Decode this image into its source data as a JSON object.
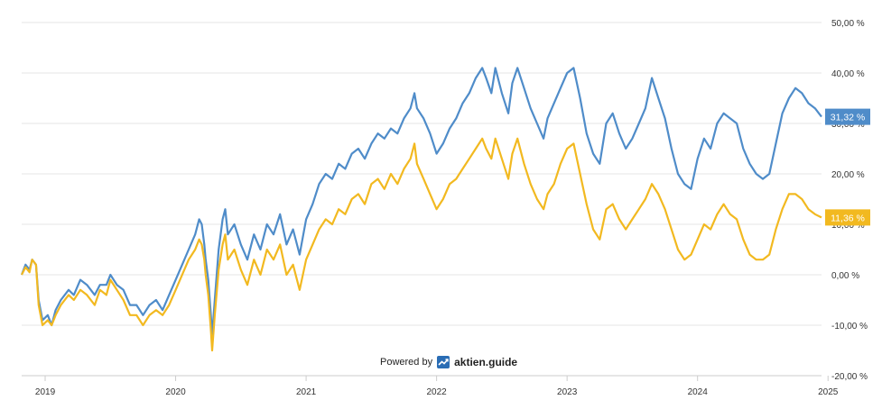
{
  "chart_data": {
    "type": "line",
    "title": "",
    "xlabel": "",
    "ylabel": "",
    "x_ticks": [
      "2019",
      "2020",
      "2021",
      "2022",
      "2023",
      "2024",
      "2025"
    ],
    "x_tick_years": [
      2019,
      2020,
      2021,
      2022,
      2023,
      2024,
      2025
    ],
    "xlim": [
      2018.82,
      2024.95
    ],
    "y_ticks": [
      "50,00 %",
      "40,00 %",
      "30,00 %",
      "20,00 %",
      "10,00 %",
      "0,00 %",
      "-10,00 %",
      "-20,00 %"
    ],
    "y_tick_values": [
      50,
      40,
      30,
      20,
      10,
      0,
      -10,
      -20
    ],
    "ylim": [
      -20,
      50
    ],
    "grid": true,
    "series": [
      {
        "color": "#4f8cc9",
        "end_label": "31,32 %",
        "points": [
          [
            2018.82,
            0
          ],
          [
            2018.85,
            2
          ],
          [
            2018.88,
            1
          ],
          [
            2018.9,
            3
          ],
          [
            2018.93,
            2
          ],
          [
            2018.95,
            -5
          ],
          [
            2018.98,
            -9
          ],
          [
            2019.02,
            -8
          ],
          [
            2019.05,
            -10
          ],
          [
            2019.08,
            -7
          ],
          [
            2019.12,
            -5
          ],
          [
            2019.18,
            -3
          ],
          [
            2019.22,
            -4
          ],
          [
            2019.27,
            -1
          ],
          [
            2019.32,
            -2
          ],
          [
            2019.38,
            -4
          ],
          [
            2019.42,
            -2
          ],
          [
            2019.47,
            -2
          ],
          [
            2019.5,
            0
          ],
          [
            2019.55,
            -2
          ],
          [
            2019.6,
            -3
          ],
          [
            2019.65,
            -6
          ],
          [
            2019.7,
            -6
          ],
          [
            2019.75,
            -8
          ],
          [
            2019.8,
            -6
          ],
          [
            2019.85,
            -5
          ],
          [
            2019.9,
            -7
          ],
          [
            2019.95,
            -4
          ],
          [
            2020.0,
            -1
          ],
          [
            2020.05,
            2
          ],
          [
            2020.1,
            5
          ],
          [
            2020.15,
            8
          ],
          [
            2020.18,
            11
          ],
          [
            2020.2,
            10
          ],
          [
            2020.22,
            6
          ],
          [
            2020.23,
            3
          ],
          [
            2020.25,
            -1
          ],
          [
            2020.27,
            -8
          ],
          [
            2020.28,
            -12
          ],
          [
            2020.3,
            -5
          ],
          [
            2020.33,
            5
          ],
          [
            2020.36,
            11
          ],
          [
            2020.38,
            13
          ],
          [
            2020.4,
            8
          ],
          [
            2020.45,
            10
          ],
          [
            2020.5,
            6
          ],
          [
            2020.55,
            3
          ],
          [
            2020.6,
            8
          ],
          [
            2020.65,
            5
          ],
          [
            2020.7,
            10
          ],
          [
            2020.75,
            8
          ],
          [
            2020.8,
            12
          ],
          [
            2020.85,
            6
          ],
          [
            2020.9,
            9
          ],
          [
            2020.95,
            4
          ],
          [
            2021.0,
            11
          ],
          [
            2021.05,
            14
          ],
          [
            2021.1,
            18
          ],
          [
            2021.15,
            20
          ],
          [
            2021.2,
            19
          ],
          [
            2021.25,
            22
          ],
          [
            2021.3,
            21
          ],
          [
            2021.35,
            24
          ],
          [
            2021.4,
            25
          ],
          [
            2021.45,
            23
          ],
          [
            2021.5,
            26
          ],
          [
            2021.55,
            28
          ],
          [
            2021.6,
            27
          ],
          [
            2021.65,
            29
          ],
          [
            2021.7,
            28
          ],
          [
            2021.75,
            31
          ],
          [
            2021.8,
            33
          ],
          [
            2021.83,
            36
          ],
          [
            2021.85,
            33
          ],
          [
            2021.9,
            31
          ],
          [
            2021.95,
            28
          ],
          [
            2022.0,
            24
          ],
          [
            2022.05,
            26
          ],
          [
            2022.1,
            29
          ],
          [
            2022.15,
            31
          ],
          [
            2022.2,
            34
          ],
          [
            2022.25,
            36
          ],
          [
            2022.3,
            39
          ],
          [
            2022.35,
            41
          ],
          [
            2022.38,
            39
          ],
          [
            2022.42,
            36
          ],
          [
            2022.45,
            41
          ],
          [
            2022.5,
            36
          ],
          [
            2022.55,
            32
          ],
          [
            2022.58,
            38
          ],
          [
            2022.62,
            41
          ],
          [
            2022.67,
            37
          ],
          [
            2022.72,
            33
          ],
          [
            2022.77,
            30
          ],
          [
            2022.82,
            27
          ],
          [
            2022.85,
            31
          ],
          [
            2022.9,
            34
          ],
          [
            2022.95,
            37
          ],
          [
            2023.0,
            40
          ],
          [
            2023.05,
            41
          ],
          [
            2023.1,
            35
          ],
          [
            2023.15,
            28
          ],
          [
            2023.2,
            24
          ],
          [
            2023.25,
            22
          ],
          [
            2023.3,
            30
          ],
          [
            2023.35,
            32
          ],
          [
            2023.4,
            28
          ],
          [
            2023.45,
            25
          ],
          [
            2023.5,
            27
          ],
          [
            2023.55,
            30
          ],
          [
            2023.6,
            33
          ],
          [
            2023.65,
            39
          ],
          [
            2023.7,
            35
          ],
          [
            2023.75,
            31
          ],
          [
            2023.8,
            25
          ],
          [
            2023.85,
            20
          ],
          [
            2023.9,
            18
          ],
          [
            2023.95,
            17
          ],
          [
            2024.0,
            23
          ],
          [
            2024.05,
            27
          ],
          [
            2024.1,
            25
          ],
          [
            2024.15,
            30
          ],
          [
            2024.2,
            32
          ],
          [
            2024.25,
            31
          ],
          [
            2024.3,
            30
          ],
          [
            2024.35,
            25
          ],
          [
            2024.4,
            22
          ],
          [
            2024.45,
            20
          ],
          [
            2024.5,
            19
          ],
          [
            2024.55,
            20
          ],
          [
            2024.6,
            26
          ],
          [
            2024.65,
            32
          ],
          [
            2024.7,
            35
          ],
          [
            2024.75,
            37
          ],
          [
            2024.8,
            36
          ],
          [
            2024.85,
            34
          ],
          [
            2024.9,
            33
          ],
          [
            2024.95,
            31.32
          ]
        ]
      },
      {
        "color": "#f2b920",
        "end_label": "11,36 %",
        "points": [
          [
            2018.82,
            0
          ],
          [
            2018.85,
            1.5
          ],
          [
            2018.88,
            0.5
          ],
          [
            2018.9,
            3
          ],
          [
            2018.93,
            2
          ],
          [
            2018.95,
            -6
          ],
          [
            2018.98,
            -10
          ],
          [
            2019.02,
            -9
          ],
          [
            2019.05,
            -10
          ],
          [
            2019.08,
            -8
          ],
          [
            2019.12,
            -6
          ],
          [
            2019.18,
            -4
          ],
          [
            2019.22,
            -5
          ],
          [
            2019.27,
            -3
          ],
          [
            2019.32,
            -4
          ],
          [
            2019.38,
            -6
          ],
          [
            2019.42,
            -3
          ],
          [
            2019.47,
            -4
          ],
          [
            2019.5,
            -1
          ],
          [
            2019.55,
            -3
          ],
          [
            2019.6,
            -5
          ],
          [
            2019.65,
            -8
          ],
          [
            2019.7,
            -8
          ],
          [
            2019.75,
            -10
          ],
          [
            2019.8,
            -8
          ],
          [
            2019.85,
            -7
          ],
          [
            2019.9,
            -8
          ],
          [
            2019.95,
            -6
          ],
          [
            2020.0,
            -3
          ],
          [
            2020.05,
            0
          ],
          [
            2020.1,
            3
          ],
          [
            2020.15,
            5
          ],
          [
            2020.18,
            7
          ],
          [
            2020.2,
            6
          ],
          [
            2020.22,
            3
          ],
          [
            2020.23,
            0
          ],
          [
            2020.25,
            -4
          ],
          [
            2020.27,
            -11
          ],
          [
            2020.28,
            -15
          ],
          [
            2020.3,
            -8
          ],
          [
            2020.33,
            1
          ],
          [
            2020.36,
            6
          ],
          [
            2020.38,
            8
          ],
          [
            2020.4,
            3
          ],
          [
            2020.45,
            5
          ],
          [
            2020.5,
            1
          ],
          [
            2020.55,
            -2
          ],
          [
            2020.6,
            3
          ],
          [
            2020.65,
            0
          ],
          [
            2020.7,
            5
          ],
          [
            2020.75,
            3
          ],
          [
            2020.8,
            6
          ],
          [
            2020.85,
            0
          ],
          [
            2020.9,
            2
          ],
          [
            2020.95,
            -3
          ],
          [
            2021.0,
            3
          ],
          [
            2021.05,
            6
          ],
          [
            2021.1,
            9
          ],
          [
            2021.15,
            11
          ],
          [
            2021.2,
            10
          ],
          [
            2021.25,
            13
          ],
          [
            2021.3,
            12
          ],
          [
            2021.35,
            15
          ],
          [
            2021.4,
            16
          ],
          [
            2021.45,
            14
          ],
          [
            2021.5,
            18
          ],
          [
            2021.55,
            19
          ],
          [
            2021.6,
            17
          ],
          [
            2021.65,
            20
          ],
          [
            2021.7,
            18
          ],
          [
            2021.75,
            21
          ],
          [
            2021.8,
            23
          ],
          [
            2021.83,
            26
          ],
          [
            2021.85,
            22
          ],
          [
            2021.9,
            19
          ],
          [
            2021.95,
            16
          ],
          [
            2022.0,
            13
          ],
          [
            2022.05,
            15
          ],
          [
            2022.1,
            18
          ],
          [
            2022.15,
            19
          ],
          [
            2022.2,
            21
          ],
          [
            2022.25,
            23
          ],
          [
            2022.3,
            25
          ],
          [
            2022.35,
            27
          ],
          [
            2022.38,
            25
          ],
          [
            2022.42,
            23
          ],
          [
            2022.45,
            27
          ],
          [
            2022.5,
            23
          ],
          [
            2022.55,
            19
          ],
          [
            2022.58,
            24
          ],
          [
            2022.62,
            27
          ],
          [
            2022.67,
            22
          ],
          [
            2022.72,
            18
          ],
          [
            2022.77,
            15
          ],
          [
            2022.82,
            13
          ],
          [
            2022.85,
            16
          ],
          [
            2022.9,
            18
          ],
          [
            2022.95,
            22
          ],
          [
            2023.0,
            25
          ],
          [
            2023.05,
            26
          ],
          [
            2023.1,
            20
          ],
          [
            2023.15,
            14
          ],
          [
            2023.2,
            9
          ],
          [
            2023.25,
            7
          ],
          [
            2023.3,
            13
          ],
          [
            2023.35,
            14
          ],
          [
            2023.4,
            11
          ],
          [
            2023.45,
            9
          ],
          [
            2023.5,
            11
          ],
          [
            2023.55,
            13
          ],
          [
            2023.6,
            15
          ],
          [
            2023.65,
            18
          ],
          [
            2023.7,
            16
          ],
          [
            2023.75,
            13
          ],
          [
            2023.8,
            9
          ],
          [
            2023.85,
            5
          ],
          [
            2023.9,
            3
          ],
          [
            2023.95,
            4
          ],
          [
            2024.0,
            7
          ],
          [
            2024.05,
            10
          ],
          [
            2024.1,
            9
          ],
          [
            2024.15,
            12
          ],
          [
            2024.2,
            14
          ],
          [
            2024.25,
            12
          ],
          [
            2024.3,
            11
          ],
          [
            2024.35,
            7
          ],
          [
            2024.4,
            4
          ],
          [
            2024.45,
            3
          ],
          [
            2024.5,
            3
          ],
          [
            2024.55,
            4
          ],
          [
            2024.6,
            9
          ],
          [
            2024.65,
            13
          ],
          [
            2024.7,
            16
          ],
          [
            2024.75,
            16
          ],
          [
            2024.8,
            15
          ],
          [
            2024.85,
            13
          ],
          [
            2024.9,
            12
          ],
          [
            2024.95,
            11.36
          ]
        ]
      }
    ]
  },
  "credit": {
    "powered_by": "Powered by",
    "brand": "aktien.guide",
    "icon": "trending-up-icon",
    "brand_color": "#2a6db5"
  }
}
